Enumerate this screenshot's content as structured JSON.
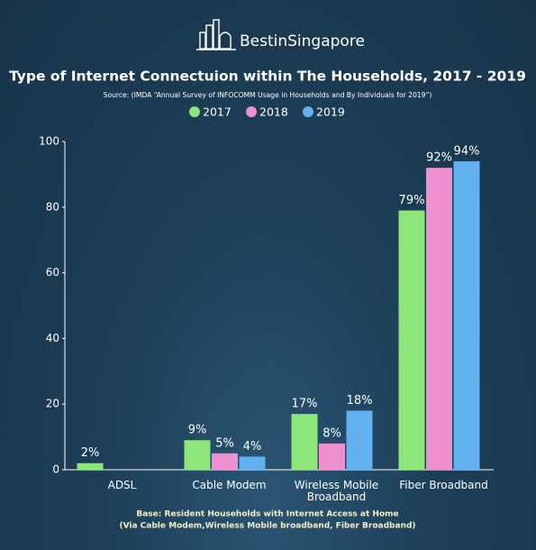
{
  "brand": "BestinSingapore",
  "chart_data": {
    "type": "bar",
    "title": "Type of Internet Connectuion within The Households, 2017 - 2019",
    "subtitle": "Source: (IMDA “Annual Survey of INFOCOMM Usage in Households and By Individuals for 2019”)",
    "categories": [
      "ADSL",
      "Cable Modem",
      "Wireless Mobile Broadband",
      "Fiber Broadband"
    ],
    "series": [
      {
        "name": "2017",
        "color": "#8ee57a",
        "values": [
          2,
          9,
          17,
          79
        ],
        "value_labels": [
          "2%",
          "9%",
          "17%",
          "79%"
        ]
      },
      {
        "name": "2018",
        "color": "#ee8fcf",
        "values": [
          null,
          5,
          8,
          92
        ],
        "value_labels": [
          null,
          "5%",
          "8%",
          "92%"
        ]
      },
      {
        "name": "2019",
        "color": "#62b0f0",
        "values": [
          null,
          4,
          18,
          94
        ],
        "value_labels": [
          null,
          "4%",
          "18%",
          "94%"
        ]
      }
    ],
    "ylim": [
      0,
      100
    ],
    "yticks": [
      0,
      20,
      40,
      60,
      80,
      100
    ],
    "notes": [
      "Base: Resident Households with Internet Access at Home",
      "(Via Cable Modem,Wireless Mobile broadband, Fiber Broadband)"
    ]
  }
}
